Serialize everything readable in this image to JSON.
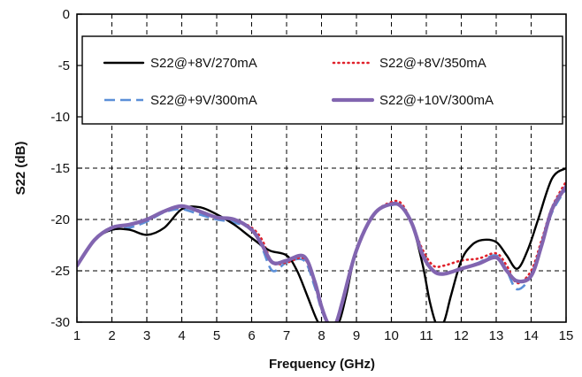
{
  "chart_data": {
    "type": "line",
    "title": "",
    "xlabel": "Frequency (GHz)",
    "ylabel": "S22 (dB)",
    "xlim": [
      1,
      15
    ],
    "ylim": [
      -30,
      0
    ],
    "xticks": [
      1,
      2,
      3,
      4,
      5,
      6,
      7,
      8,
      9,
      10,
      11,
      12,
      13,
      14,
      15
    ],
    "yticks": [
      0,
      -5,
      -10,
      -15,
      -20,
      -25,
      -30
    ],
    "grid": "dashed",
    "legend_position": "top",
    "series": [
      {
        "name": "S22@+8V/270mA",
        "color": "#000000",
        "dash": "solid",
        "x": [
          1,
          1.5,
          2,
          2.5,
          3,
          3.5,
          4,
          4.5,
          5,
          5.5,
          6,
          6.5,
          7,
          7.3,
          7.6,
          7.9,
          8.1,
          8.3,
          8.5,
          8.7,
          9,
          9.5,
          10,
          10.3,
          10.6,
          10.9,
          11.1,
          11.3,
          11.5,
          11.7,
          12,
          12.3,
          12.6,
          13,
          13.3,
          13.6,
          13.9,
          14.2,
          14.6,
          15
        ],
        "y": [
          -24.5,
          -22,
          -21,
          -21,
          -21.5,
          -20.8,
          -19,
          -18.8,
          -19.5,
          -20.5,
          -21.8,
          -23,
          -23.5,
          -25,
          -27.5,
          -30,
          -30.3,
          -30.3,
          -30,
          -27.5,
          -23,
          -19.5,
          -18.5,
          -18.8,
          -20.5,
          -24.5,
          -28,
          -30.3,
          -30,
          -27.5,
          -24,
          -22.5,
          -22,
          -22.2,
          -23.5,
          -24.8,
          -23,
          -20,
          -16,
          -15
        ]
      },
      {
        "name": "S22@+8V/350mA",
        "color": "#e0202a",
        "dash": "dotted",
        "x": [
          1,
          1.5,
          2,
          2.5,
          3,
          3.5,
          4,
          4.5,
          5,
          5.5,
          6,
          6.3,
          6.6,
          7,
          7.5,
          7.8,
          8,
          8.2,
          8.4,
          8.6,
          9,
          9.5,
          10,
          10.3,
          10.6,
          10.9,
          11.2,
          11.5,
          12,
          12.5,
          13,
          13.3,
          13.6,
          14,
          14.3,
          14.6,
          15
        ],
        "y": [
          -24.5,
          -22,
          -20.8,
          -20.5,
          -20,
          -19.2,
          -18.8,
          -19.2,
          -19.8,
          -20,
          -20.8,
          -22,
          -24.2,
          -24.2,
          -23.8,
          -26,
          -28.5,
          -30.2,
          -30.2,
          -28,
          -23,
          -19.5,
          -18.3,
          -18.5,
          -20.5,
          -23,
          -24.5,
          -24.5,
          -24,
          -23.8,
          -23.3,
          -24.5,
          -26.2,
          -25,
          -22,
          -18.8,
          -16.3
        ]
      },
      {
        "name": "S22@+9V/300mA",
        "color": "#5b8fd8",
        "dash": "dashed",
        "x": [
          1,
          1.5,
          2,
          2.5,
          3,
          3.5,
          4,
          4.5,
          5,
          5.5,
          6,
          6.3,
          6.6,
          7,
          7.5,
          7.8,
          8,
          8.2,
          8.4,
          8.6,
          9,
          9.5,
          10,
          10.3,
          10.6,
          10.9,
          11.2,
          11.5,
          12,
          12.5,
          13,
          13.3,
          13.6,
          14,
          14.3,
          14.6,
          15
        ],
        "y": [
          -24.5,
          -22,
          -21,
          -20.8,
          -20.2,
          -19.3,
          -19,
          -19.5,
          -20,
          -20.3,
          -21,
          -22.8,
          -25,
          -24.2,
          -24,
          -26.5,
          -28.8,
          -30.2,
          -30.2,
          -28,
          -23,
          -19.5,
          -18.6,
          -18.8,
          -20.5,
          -23.5,
          -25,
          -25.3,
          -24.8,
          -24.2,
          -23.5,
          -25,
          -26.8,
          -25.5,
          -22.5,
          -19.3,
          -17
        ]
      },
      {
        "name": "S22@+10V/300mA",
        "color": "#8265b0",
        "dash": "solid",
        "x": [
          1,
          1.5,
          2,
          2.5,
          3,
          3.5,
          4,
          4.5,
          5,
          5.5,
          6,
          6.3,
          6.6,
          7,
          7.5,
          7.8,
          8,
          8.2,
          8.4,
          8.6,
          9,
          9.5,
          10,
          10.3,
          10.6,
          10.9,
          11.2,
          11.5,
          12,
          12.5,
          13,
          13.3,
          13.6,
          14,
          14.3,
          14.6,
          15
        ],
        "y": [
          -24.5,
          -22,
          -20.8,
          -20.5,
          -20,
          -19.2,
          -18.7,
          -19.2,
          -19.8,
          -20,
          -21,
          -22.5,
          -24.2,
          -24,
          -23.6,
          -26,
          -28.5,
          -30.2,
          -30.2,
          -28,
          -23,
          -19.5,
          -18.5,
          -18.8,
          -20.5,
          -23.5,
          -25,
          -25.3,
          -24.8,
          -24.3,
          -23.7,
          -25,
          -26,
          -25.5,
          -22.5,
          -19,
          -16.8
        ]
      }
    ]
  }
}
